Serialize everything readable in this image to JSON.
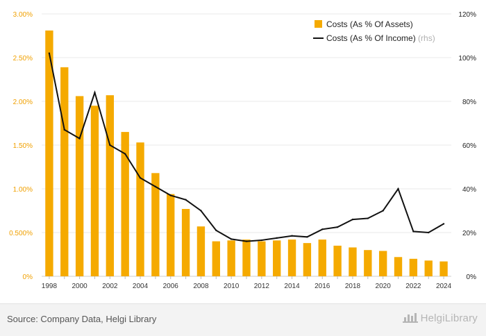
{
  "chart_data": {
    "type": "bar+line",
    "x": [
      "1998",
      "1999",
      "2000",
      "2001",
      "2002",
      "2003",
      "2004",
      "2005",
      "2006",
      "2007",
      "2008",
      "2009",
      "2010",
      "2011",
      "2012",
      "2013",
      "2014",
      "2015",
      "2016",
      "2017",
      "2018",
      "2019",
      "2020",
      "2021",
      "2022",
      "2023",
      "2024"
    ],
    "x_tick_labels": [
      "1998",
      "2000",
      "2002",
      "2004",
      "2006",
      "2008",
      "2010",
      "2012",
      "2014",
      "2016",
      "2018",
      "2020",
      "2022",
      "2024"
    ],
    "series": [
      {
        "name": "Costs (As % Of Assets)",
        "type": "bar",
        "axis": "left",
        "color": "#f5aa00",
        "values": [
          2.81,
          2.39,
          2.06,
          1.95,
          2.07,
          1.65,
          1.53,
          1.18,
          0.94,
          0.77,
          0.57,
          0.4,
          0.41,
          0.42,
          0.4,
          0.41,
          0.42,
          0.38,
          0.42,
          0.35,
          0.33,
          0.3,
          0.29,
          0.22,
          0.2,
          0.18,
          0.17
        ]
      },
      {
        "name": "Costs (As % Of Income)",
        "name_suffix": "(rhs)",
        "type": "line",
        "axis": "right",
        "color": "#111111",
        "values": [
          102,
          67,
          63,
          84,
          60,
          56,
          45,
          41,
          37,
          35,
          30,
          21,
          17,
          16,
          16.5,
          17.5,
          18.5,
          18,
          21.5,
          22.5,
          26,
          26.5,
          30,
          40,
          20.5,
          20,
          24
        ]
      }
    ],
    "y_left": {
      "min": 0,
      "max": 3.0,
      "ticks": [
        "0%",
        "0.500%",
        "1.00%",
        "1.50%",
        "2.00%",
        "2.50%",
        "3.00%"
      ]
    },
    "y_right": {
      "min": 0,
      "max": 120,
      "ticks": [
        "0%",
        "20%",
        "40%",
        "60%",
        "80%",
        "100%",
        "120%"
      ]
    },
    "grid": true,
    "legend_position": "top-right"
  },
  "footer": {
    "source": "Source: Company Data, Helgi Library",
    "brand": "HelgiLibrary"
  }
}
